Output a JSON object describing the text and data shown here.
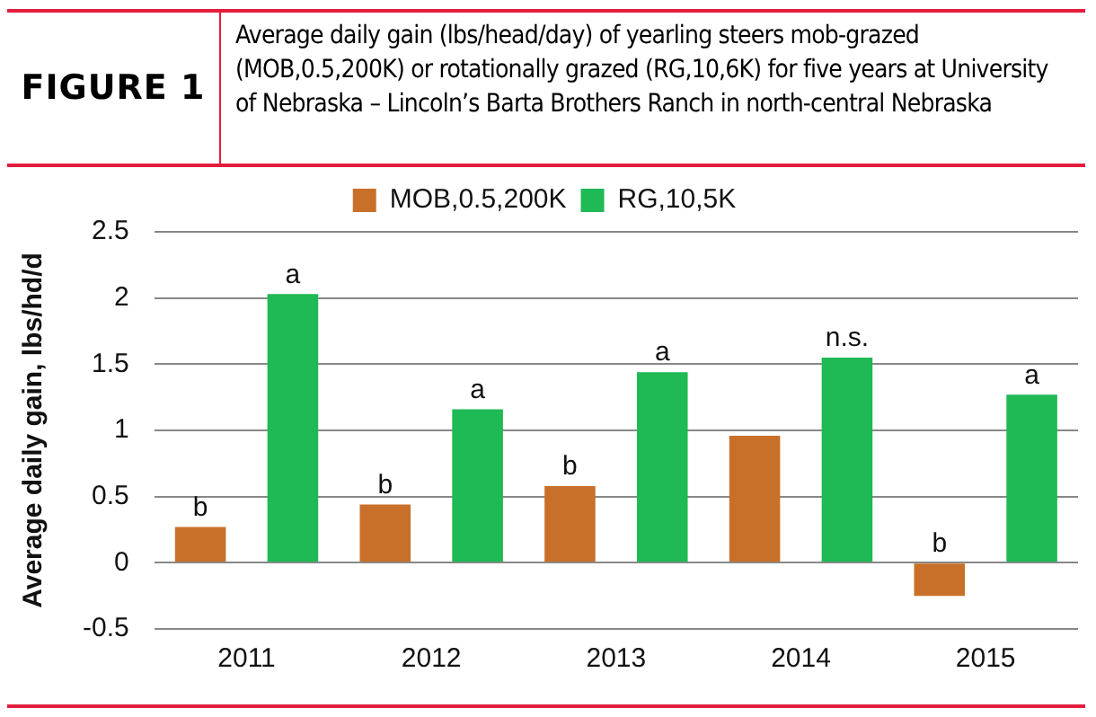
{
  "chart_data": {
    "type": "bar",
    "subtitle": "FIGURE 1",
    "title": "Average daily gain (lbs/head/day) of yearling steers mob-grazed (MOB,0.5,200K) or rotationally grazed (RG,10,6K) for five years at University of Nebraska – Lincoln’s Barta Brothers Ranch in north-central Nebraska",
    "ylabel": "Average daily gain, lbs/hd/d",
    "categories": [
      "2011",
      "2012",
      "2013",
      "2014",
      "2015"
    ],
    "series": [
      {
        "name": "MOB,0.5,200K",
        "color": "#c8702a",
        "values": [
          0.27,
          0.44,
          0.58,
          0.96,
          -0.25
        ],
        "value_labels": [
          "b",
          "b",
          "b",
          null,
          "b"
        ]
      },
      {
        "name": "RG,10,5K",
        "color": "#1fb955",
        "values": [
          2.03,
          1.16,
          1.44,
          1.55,
          1.27
        ],
        "value_labels": [
          "a",
          "a",
          "a",
          "n.s.",
          "a"
        ]
      }
    ],
    "ylim": [
      -0.5,
      2.5
    ],
    "yticks": [
      -0.5,
      0,
      0.5,
      1,
      1.5,
      2,
      2.5
    ],
    "grid": "y",
    "legend": "top"
  }
}
